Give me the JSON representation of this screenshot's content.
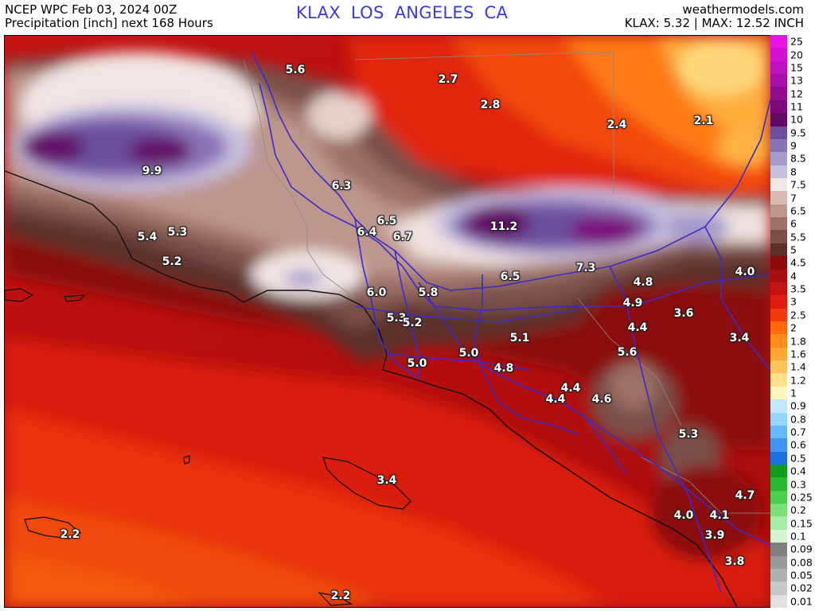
{
  "header": {
    "line1_left": "NCEP WPC Feb 03, 2024 00Z",
    "line2_left": "Precipitation [inch] next 168 Hours",
    "station": "KLAX   LOS ANGELES    CA",
    "line1_right": "weathermodels.com",
    "line2_right": "KLAX: 5.32 | MAX: 12.52 INCH"
  },
  "legend": [
    {
      "label": "25",
      "color": "#e614e6"
    },
    {
      "label": "20",
      "color": "#d212d2"
    },
    {
      "label": "15",
      "color": "#bf10bf"
    },
    {
      "label": "13",
      "color": "#a80ea8"
    },
    {
      "label": "12",
      "color": "#910c91"
    },
    {
      "label": "11",
      "color": "#7a0a7a"
    },
    {
      "label": "10",
      "color": "#640866"
    },
    {
      "label": "9.5",
      "color": "#6b4f9c"
    },
    {
      "label": "9",
      "color": "#8a73b5"
    },
    {
      "label": "8.5",
      "color": "#a699cc"
    },
    {
      "label": "8",
      "color": "#c8c0e0"
    },
    {
      "label": "7.5",
      "color": "#f0e6e4"
    },
    {
      "label": "7",
      "color": "#d9b9b2"
    },
    {
      "label": "6.5",
      "color": "#bd968d"
    },
    {
      "label": "6",
      "color": "#9c7168"
    },
    {
      "label": "5.5",
      "color": "#7a4f48"
    },
    {
      "label": "5",
      "color": "#5c3029"
    },
    {
      "label": "4.5",
      "color": "#8b0a0a"
    },
    {
      "label": "4",
      "color": "#a80c0c"
    },
    {
      "label": "3.5",
      "color": "#c41212"
    },
    {
      "label": "3",
      "color": "#df1d10"
    },
    {
      "label": "2.5",
      "color": "#f23b0c"
    },
    {
      "label": "2",
      "color": "#ff6a0a"
    },
    {
      "label": "1.8",
      "color": "#ff8c1a"
    },
    {
      "label": "1.6",
      "color": "#ffa733"
    },
    {
      "label": "1.4",
      "color": "#ffc45c"
    },
    {
      "label": "1.2",
      "color": "#ffe08c"
    },
    {
      "label": "1",
      "color": "#fff5c0"
    },
    {
      "label": "0.9",
      "color": "#bfe8ff"
    },
    {
      "label": "0.8",
      "color": "#99d6ff"
    },
    {
      "label": "0.7",
      "color": "#66b8ff"
    },
    {
      "label": "0.6",
      "color": "#3d94f5"
    },
    {
      "label": "0.5",
      "color": "#1a6fe0"
    },
    {
      "label": "0.4",
      "color": "#0c9c1a"
    },
    {
      "label": "0.3",
      "color": "#26b82e"
    },
    {
      "label": "0.25",
      "color": "#4ccf4c"
    },
    {
      "label": "0.2",
      "color": "#7ae07a"
    },
    {
      "label": "0.15",
      "color": "#a6eba6"
    },
    {
      "label": "0.1",
      "color": "#d4f5d4"
    },
    {
      "label": "0.09",
      "color": "#808080"
    },
    {
      "label": "0.08",
      "color": "#999999"
    },
    {
      "label": "0.05",
      "color": "#b0b0b0"
    },
    {
      "label": "0.02",
      "color": "#c8c8c8"
    },
    {
      "label": "0.01",
      "color": "#e0e0e0"
    }
  ],
  "map_values": [
    {
      "text": "5.6"
    },
    {
      "text": "2.7"
    },
    {
      "text": "2.8"
    },
    {
      "text": "2.4"
    },
    {
      "text": "2.1"
    },
    {
      "text": "9.9"
    },
    {
      "text": "6.3"
    },
    {
      "text": "6.5"
    },
    {
      "text": "6.4"
    },
    {
      "text": "6.7"
    },
    {
      "text": "11.2"
    },
    {
      "text": "5.4"
    },
    {
      "text": "5.3"
    },
    {
      "text": "5.2"
    },
    {
      "text": "7.3"
    },
    {
      "text": "6.5"
    },
    {
      "text": "4.0"
    },
    {
      "text": "4.8"
    },
    {
      "text": "6.0"
    },
    {
      "text": "5.8"
    },
    {
      "text": "4.9"
    },
    {
      "text": "3.6"
    },
    {
      "text": "5.3"
    },
    {
      "text": "5.2"
    },
    {
      "text": "4.4"
    },
    {
      "text": "3.4"
    },
    {
      "text": "5.1"
    },
    {
      "text": "5.6"
    },
    {
      "text": "5.0"
    },
    {
      "text": "5.0"
    },
    {
      "text": "4.8"
    },
    {
      "text": "4.4"
    },
    {
      "text": "4.4"
    },
    {
      "text": "4.6"
    },
    {
      "text": "5.3"
    },
    {
      "text": "3.4"
    },
    {
      "text": "4.7"
    },
    {
      "text": "4.0"
    },
    {
      "text": "4.1"
    },
    {
      "text": "2.2"
    },
    {
      "text": "3.9"
    },
    {
      "text": "3.8"
    },
    {
      "text": "2.2"
    }
  ]
}
